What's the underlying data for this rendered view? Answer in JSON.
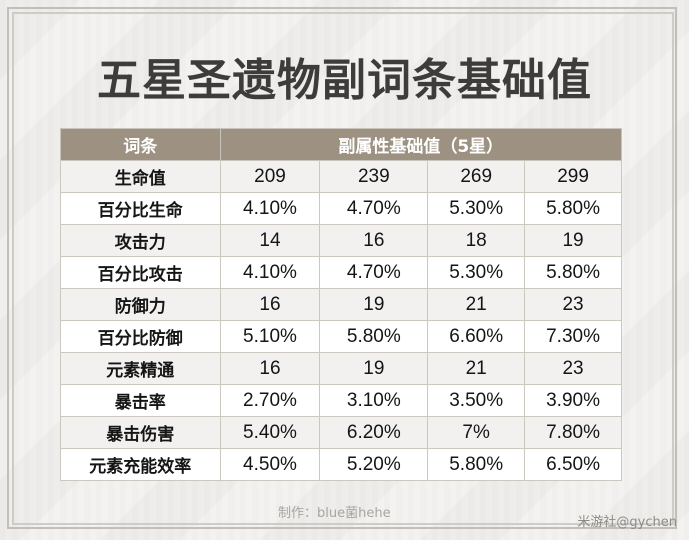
{
  "title": "五星圣遗物副词条基础值",
  "table": {
    "header_label": "词条",
    "header_values": "副属性基础值（5星）",
    "rows": [
      {
        "label": "生命值",
        "values": [
          "209",
          "239",
          "269",
          "299"
        ]
      },
      {
        "label": "百分比生命",
        "values": [
          "4.10%",
          "4.70%",
          "5.30%",
          "5.80%"
        ]
      },
      {
        "label": "攻击力",
        "values": [
          "14",
          "16",
          "18",
          "19"
        ]
      },
      {
        "label": "百分比攻击",
        "values": [
          "4.10%",
          "4.70%",
          "5.30%",
          "5.80%"
        ]
      },
      {
        "label": "防御力",
        "values": [
          "16",
          "19",
          "21",
          "23"
        ]
      },
      {
        "label": "百分比防御",
        "values": [
          "5.10%",
          "5.80%",
          "6.60%",
          "7.30%"
        ]
      },
      {
        "label": "元素精通",
        "values": [
          "16",
          "19",
          "21",
          "23"
        ]
      },
      {
        "label": "暴击率",
        "values": [
          "2.70%",
          "3.10%",
          "3.50%",
          "3.90%"
        ]
      },
      {
        "label": "暴击伤害",
        "values": [
          "5.40%",
          "6.20%",
          "7%",
          "7.80%"
        ]
      },
      {
        "label": "元素充能效率",
        "values": [
          "4.50%",
          "5.20%",
          "5.80%",
          "6.50%"
        ]
      }
    ]
  },
  "credit": "制作：blue菌hehe",
  "watermark": "米游社@gychen",
  "colors": {
    "header_bg": "#9d9282",
    "header_text": "#ffffff",
    "title_text": "#3e3c3a",
    "row_alt_bg": "#f2f1ef"
  }
}
